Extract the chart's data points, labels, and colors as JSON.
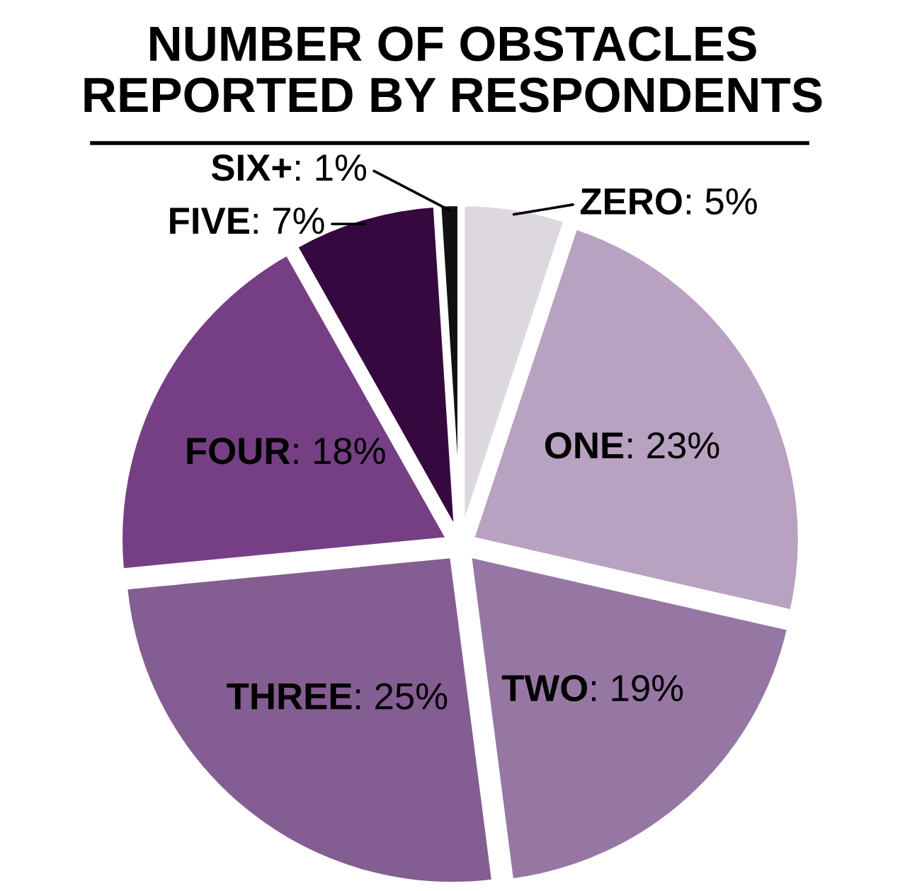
{
  "chart_data": {
    "type": "pie",
    "title": "NUMBER OF OBSTACLES\nREPORTED BY RESPONDENTS",
    "categories": [
      "ZERO",
      "ONE",
      "TWO",
      "THREE",
      "FOUR",
      "FIVE",
      "SIX+"
    ],
    "values": [
      5,
      23,
      19,
      25,
      18,
      7,
      1
    ],
    "value_labels": [
      ": 5%",
      ": 23%",
      ": 19%",
      ": 25%",
      ": 18%",
      ": 7%",
      ": 1%"
    ],
    "colors": [
      "#ddd7e0",
      "#b9a2c1",
      "#9677a4",
      "#845d92",
      "#763f85",
      "#35093f",
      "#111111"
    ]
  }
}
